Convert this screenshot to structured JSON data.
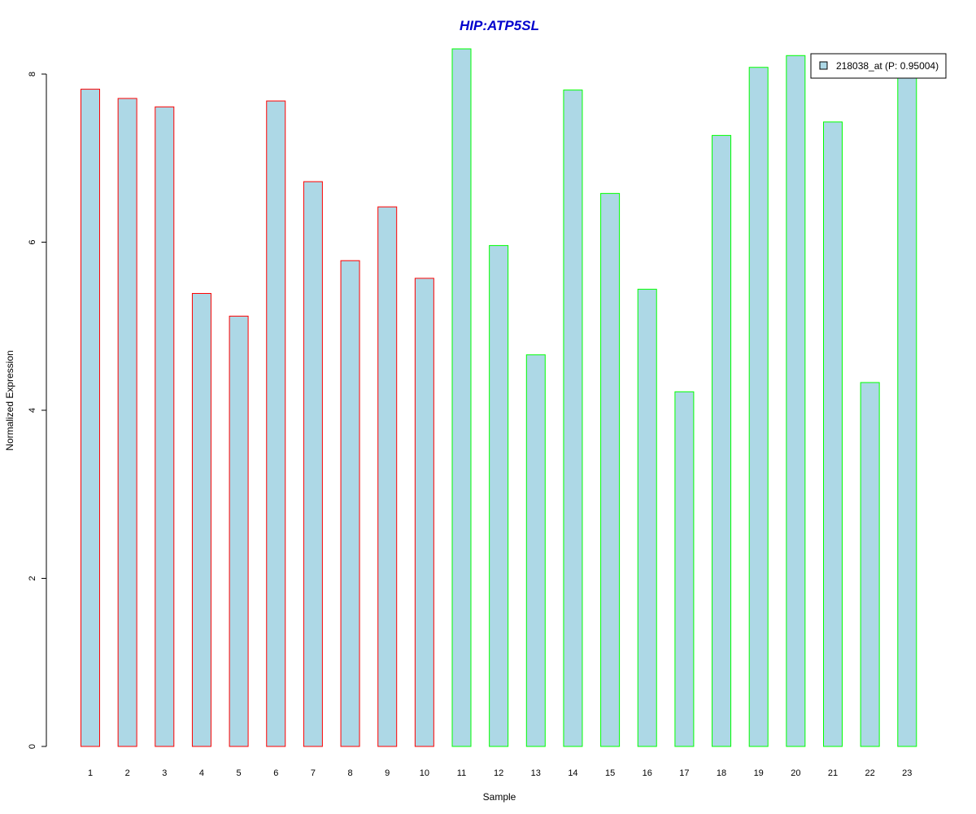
{
  "chart_data": {
    "type": "bar",
    "title": "HIP:ATP5SL",
    "xlabel": "Sample",
    "ylabel": "Normalized Expression",
    "ylim": [
      0,
      8.3
    ],
    "yticks": [
      0,
      2,
      4,
      6,
      8
    ],
    "grid": false,
    "legend": {
      "placement": "top-right",
      "entries": [
        "218038_at (P: 0.95004)"
      ]
    },
    "categories": [
      "1",
      "2",
      "3",
      "4",
      "5",
      "6",
      "7",
      "8",
      "9",
      "10",
      "11",
      "12",
      "13",
      "14",
      "15",
      "16",
      "17",
      "18",
      "19",
      "20",
      "21",
      "22",
      "23"
    ],
    "values": [
      7.82,
      7.71,
      7.61,
      5.39,
      5.12,
      7.68,
      6.72,
      5.78,
      6.42,
      5.57,
      8.3,
      5.96,
      4.66,
      7.81,
      6.58,
      5.44,
      4.22,
      7.27,
      8.08,
      8.22,
      7.43,
      4.33,
      8.0
    ],
    "series": [
      {
        "values": [
          7.82,
          7.71,
          7.61,
          5.39,
          5.12,
          7.68,
          6.72,
          5.78,
          6.42,
          5.57,
          8.3,
          5.96,
          4.66,
          7.81,
          6.58,
          5.44,
          4.22,
          7.27,
          8.08,
          8.22,
          7.43,
          4.33,
          8.0
        ]
      }
    ],
    "groups": [
      {
        "samples": [
          "1",
          "2",
          "3",
          "4",
          "5",
          "6",
          "7",
          "8",
          "9",
          "10"
        ],
        "border_color": "#ff0000"
      },
      {
        "samples": [
          "11",
          "12",
          "13",
          "14",
          "15",
          "16",
          "17",
          "18",
          "19",
          "20",
          "21",
          "22",
          "23"
        ],
        "border_color": "#00ff00"
      }
    ],
    "colors": {
      "bar_fill": "#add8e6",
      "title": "#0000cd",
      "group_a_border": "#ff0000",
      "group_b_border": "#00ff00"
    }
  }
}
